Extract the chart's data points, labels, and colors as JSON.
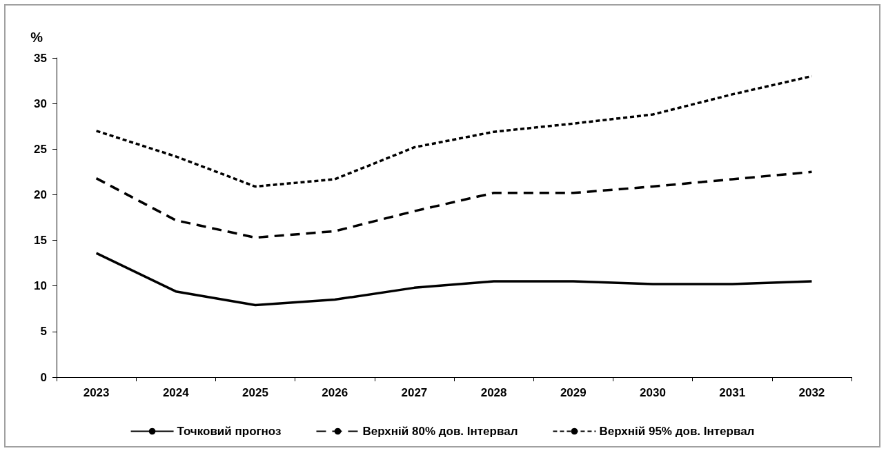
{
  "chart_data": {
    "type": "line",
    "ylabel": "%",
    "categories": [
      "2023",
      "2024",
      "2025",
      "2026",
      "2027",
      "2028",
      "2029",
      "2030",
      "2031",
      "2032"
    ],
    "series": [
      {
        "name": "Точковий прогноз",
        "color": "#000000",
        "line_style": "solid",
        "values": [
          13.6,
          9.4,
          7.9,
          8.5,
          9.8,
          10.5,
          10.5,
          10.2,
          10.2,
          10.5
        ]
      },
      {
        "name": "Верхній 80% дов. Інтервал",
        "color": "#000000",
        "line_style": "dashed",
        "values": [
          21.8,
          17.2,
          15.3,
          16.0,
          18.2,
          20.2,
          20.2,
          20.9,
          21.7,
          22.5
        ]
      },
      {
        "name": "Верхній 95% дов. Інтервал",
        "color": "#000000",
        "line_style": "dotted",
        "values": [
          27.0,
          24.2,
          20.9,
          21.7,
          25.2,
          26.9,
          27.8,
          28.8,
          31.0,
          33.0
        ]
      }
    ],
    "ylim": [
      0,
      35
    ],
    "yticks": [
      0,
      5,
      10,
      15,
      20,
      25,
      30,
      35
    ],
    "grid": false,
    "legend": "bottom",
    "marker": "none"
  }
}
